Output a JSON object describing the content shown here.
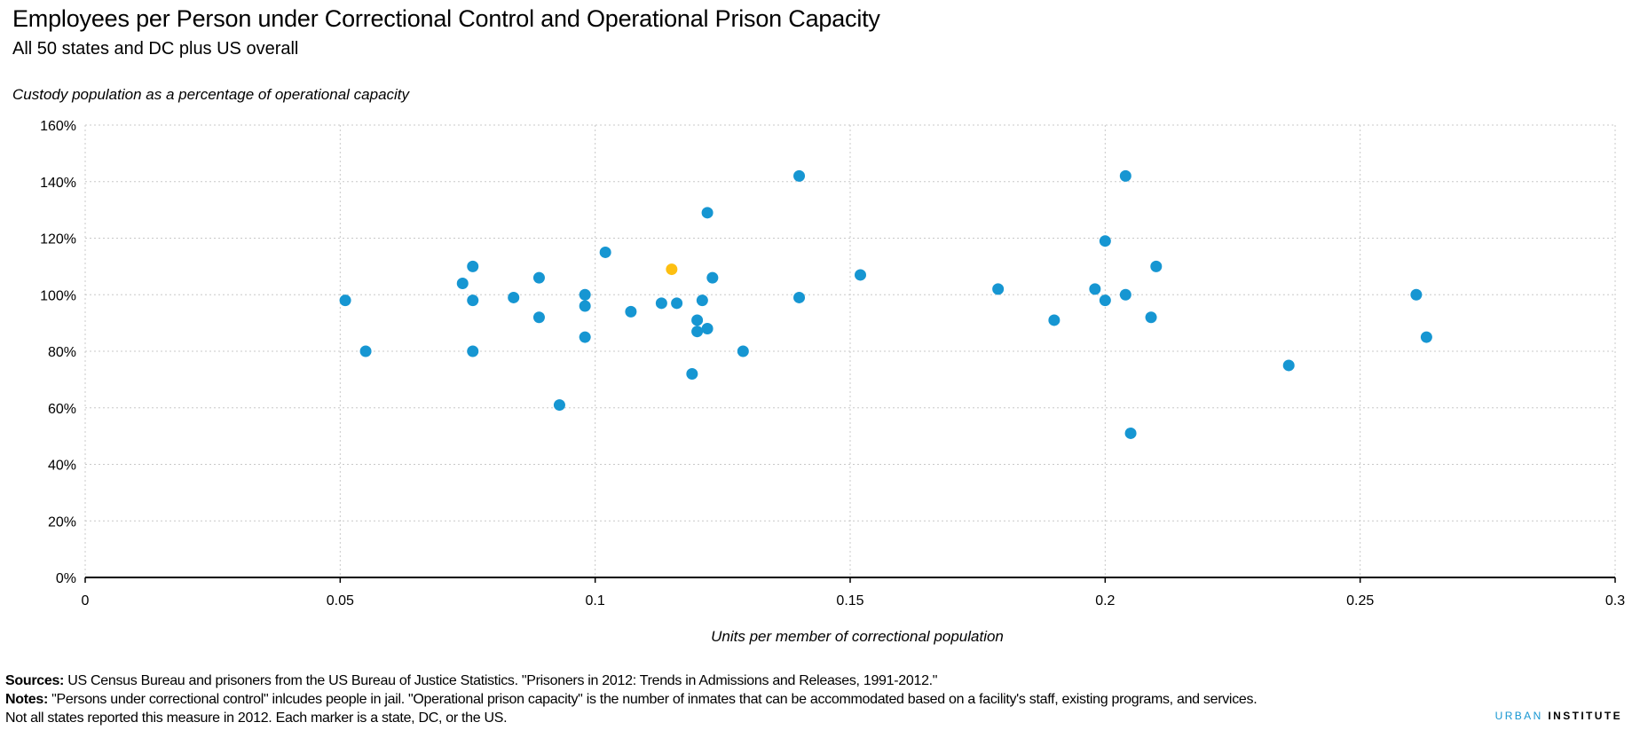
{
  "header": {
    "title": "Employees per Person under Correctional Control and Operational Prison Capacity",
    "subtitle": "All 50 states and DC plus US overall"
  },
  "footer": {
    "sources_label": "Sources:",
    "sources_text": " US Census Bureau and prisoners from the US Bureau of Justice Statistics. \"Prisoners in 2012: Trends in Admissions and Releases, 1991-2012.\"",
    "notes_label": "Notes:",
    "notes_text": " \"Persons under correctional control\" inlcudes people in jail. \"Operational prison capacity\" is the number of inmates that can be accommodated based on a facility's staff, existing programs, and services.",
    "notes_text2": "Not all states reported this measure in 2012.  Each marker is a state, DC, or the US.",
    "brand_part1": "URBAN",
    "brand_part2": "INSTITUTE"
  },
  "colors": {
    "series": "#1696d2",
    "highlight": "#fdbf11",
    "grid": "#c8c8c8",
    "axis": "#000000"
  },
  "chart_data": {
    "type": "scatter",
    "title": "Employees per Person under Correctional Control and Operational Prison Capacity",
    "subtitle": "All 50 states and DC plus US overall",
    "xlabel": "Units per member of correctional population",
    "ylabel": "Custody population as a percentage of operational capacity",
    "xlim": [
      0,
      0.3
    ],
    "ylim": [
      0,
      160
    ],
    "xticks": [
      0,
      0.05,
      0.1,
      0.15,
      0.2,
      0.25,
      0.3
    ],
    "xtick_labels": [
      "0",
      "0.05",
      "0.1",
      "0.15",
      "0.2",
      "0.25",
      "0.3"
    ],
    "yticks": [
      0,
      20,
      40,
      60,
      80,
      100,
      120,
      140,
      160
    ],
    "ytick_labels": [
      "0%",
      "20%",
      "40%",
      "60%",
      "80%",
      "100%",
      "120%",
      "140%",
      "160%"
    ],
    "grid": true,
    "points": [
      {
        "x": 0.051,
        "y": 98
      },
      {
        "x": 0.055,
        "y": 80
      },
      {
        "x": 0.074,
        "y": 104
      },
      {
        "x": 0.076,
        "y": 110
      },
      {
        "x": 0.076,
        "y": 98
      },
      {
        "x": 0.076,
        "y": 80
      },
      {
        "x": 0.084,
        "y": 99
      },
      {
        "x": 0.089,
        "y": 106
      },
      {
        "x": 0.089,
        "y": 92
      },
      {
        "x": 0.093,
        "y": 61
      },
      {
        "x": 0.098,
        "y": 96
      },
      {
        "x": 0.098,
        "y": 100
      },
      {
        "x": 0.098,
        "y": 85
      },
      {
        "x": 0.102,
        "y": 115
      },
      {
        "x": 0.107,
        "y": 94
      },
      {
        "x": 0.113,
        "y": 97
      },
      {
        "x": 0.116,
        "y": 97
      },
      {
        "x": 0.119,
        "y": 72
      },
      {
        "x": 0.12,
        "y": 91
      },
      {
        "x": 0.12,
        "y": 87
      },
      {
        "x": 0.121,
        "y": 98
      },
      {
        "x": 0.122,
        "y": 129
      },
      {
        "x": 0.122,
        "y": 88
      },
      {
        "x": 0.123,
        "y": 106
      },
      {
        "x": 0.129,
        "y": 80
      },
      {
        "x": 0.14,
        "y": 142
      },
      {
        "x": 0.14,
        "y": 99
      },
      {
        "x": 0.152,
        "y": 107
      },
      {
        "x": 0.179,
        "y": 102
      },
      {
        "x": 0.19,
        "y": 91
      },
      {
        "x": 0.198,
        "y": 102
      },
      {
        "x": 0.2,
        "y": 98
      },
      {
        "x": 0.2,
        "y": 119
      },
      {
        "x": 0.204,
        "y": 142
      },
      {
        "x": 0.204,
        "y": 100
      },
      {
        "x": 0.205,
        "y": 51
      },
      {
        "x": 0.209,
        "y": 92
      },
      {
        "x": 0.21,
        "y": 110
      },
      {
        "x": 0.236,
        "y": 75
      },
      {
        "x": 0.261,
        "y": 100
      },
      {
        "x": 0.263,
        "y": 85
      },
      {
        "x": 0.115,
        "y": 109,
        "highlight": true
      }
    ]
  }
}
